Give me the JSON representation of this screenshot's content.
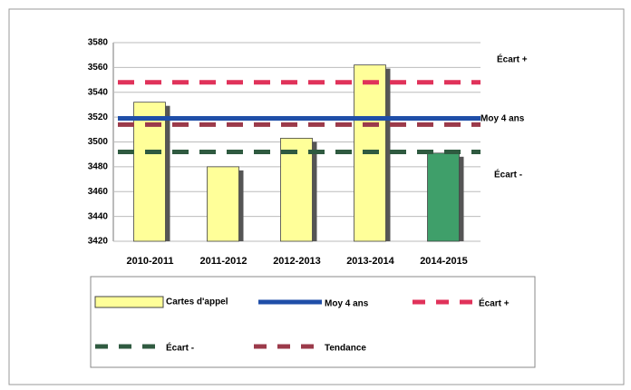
{
  "chart_data": {
    "type": "bar",
    "categories": [
      "2010-2011",
      "2011-2012",
      "2012-2013",
      "2013-2014",
      "2014-2015"
    ],
    "series": [
      {
        "name": "Cartes d'appel",
        "color": "#ffff99",
        "values": [
          3532,
          3480,
          3503,
          3562,
          3491
        ],
        "colors": [
          "#ffff99",
          "#ffff99",
          "#ffff99",
          "#ffff99",
          "#3f9f6a"
        ]
      }
    ],
    "reference_lines": [
      {
        "name": "Moy 4 ans",
        "value": 3519,
        "color": "#1f4ea8",
        "dash": false
      },
      {
        "name": "Écart +",
        "value": 3548,
        "color": "#e0325a",
        "dash": true
      },
      {
        "name": "Écart -",
        "value": 3492,
        "color": "#2f5a40",
        "dash": true
      },
      {
        "name": "Tendance",
        "value": 3514,
        "color": "#9b3a4a",
        "dash": true
      }
    ],
    "annotations": [
      "Écart +",
      "Moy 4 ans",
      "Écart -"
    ],
    "ylim": [
      3420,
      3580
    ],
    "yticks": [
      3420,
      3440,
      3460,
      3480,
      3500,
      3520,
      3540,
      3560,
      3580
    ],
    "grid": true
  }
}
